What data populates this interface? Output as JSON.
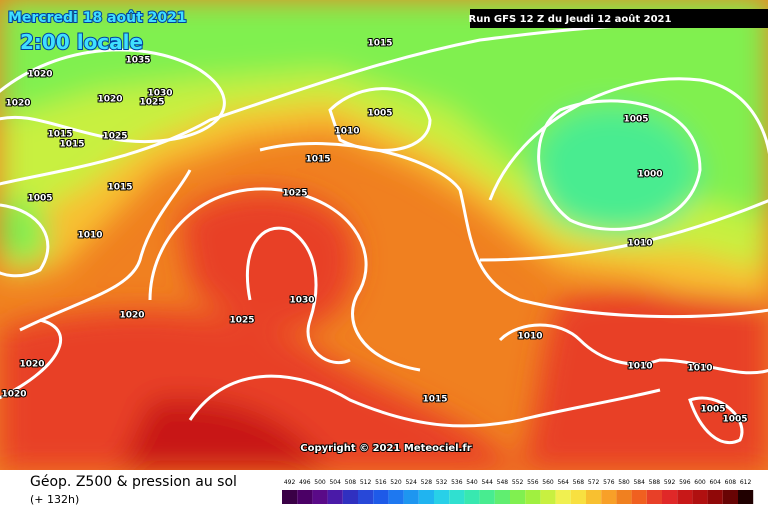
{
  "header": {
    "date": "Mercredi 18 août 2021",
    "local_time": "2:00 locale",
    "run": "Run GFS 12 Z du Jeudi 12 août 2021"
  },
  "copyright": "Copyright © 2021 Meteociel.fr",
  "footer": {
    "title": "Géop. Z500 & pression au sol",
    "lead": "(+ 132h)"
  },
  "isobar_labels": [
    1015,
    1035,
    1020,
    1020,
    1020,
    1025,
    1030,
    1005,
    1010,
    1015,
    1015,
    1025,
    1015,
    1005,
    1000,
    1015,
    1025,
    1005,
    1010,
    1010,
    1030,
    1020,
    1025,
    1010,
    1010,
    1010,
    1020,
    1020,
    1015,
    1005,
    1005
  ],
  "scale": [
    {
      "value": 492,
      "color": "#3a0046"
    },
    {
      "value": 496,
      "color": "#4b0066"
    },
    {
      "value": 500,
      "color": "#5a0a88"
    },
    {
      "value": 504,
      "color": "#4a1aa8"
    },
    {
      "value": 508,
      "color": "#3030c0"
    },
    {
      "value": 512,
      "color": "#2848d8"
    },
    {
      "value": 516,
      "color": "#1e5ae8"
    },
    {
      "value": 520,
      "color": "#1e78f0"
    },
    {
      "value": 524,
      "color": "#1e96f0"
    },
    {
      "value": 528,
      "color": "#20b4f0"
    },
    {
      "value": 532,
      "color": "#28d0e8"
    },
    {
      "value": 536,
      "color": "#30e0d0"
    },
    {
      "value": 540,
      "color": "#38e8b0"
    },
    {
      "value": 544,
      "color": "#48ec90"
    },
    {
      "value": 548,
      "color": "#60ee70"
    },
    {
      "value": 552,
      "color": "#80f050"
    },
    {
      "value": 556,
      "color": "#a0f040"
    },
    {
      "value": 560,
      "color": "#c8f040"
    },
    {
      "value": 564,
      "color": "#f0f050"
    },
    {
      "value": 568,
      "color": "#f8e040"
    },
    {
      "value": 572,
      "color": "#f8c030"
    },
    {
      "value": 576,
      "color": "#f8a028"
    },
    {
      "value": 580,
      "color": "#f08020"
    },
    {
      "value": 584,
      "color": "#f06020"
    },
    {
      "value": 588,
      "color": "#e84028"
    },
    {
      "value": 592,
      "color": "#e02828"
    },
    {
      "value": 596,
      "color": "#c81818"
    },
    {
      "value": 600,
      "color": "#b01010"
    },
    {
      "value": 604,
      "color": "#900808"
    },
    {
      "value": 608,
      "color": "#680404"
    },
    {
      "value": 612,
      "color": "#200000"
    }
  ]
}
